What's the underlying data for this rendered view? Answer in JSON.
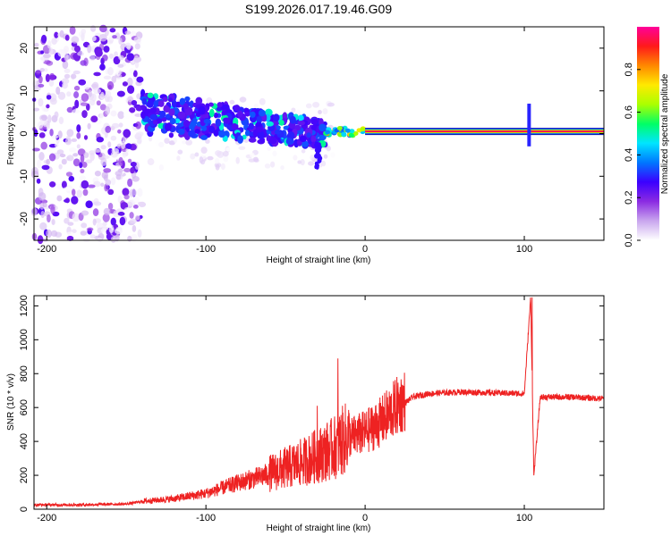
{
  "figure_title": "S199.2026.017.19.46.G09",
  "colors": {
    "snr_line": "#ee2222",
    "colormap": [
      "#ffffff",
      "#c9a6ee",
      "#8b2be2",
      "#3b00ff",
      "#0077ff",
      "#00e5ff",
      "#00ff66",
      "#aaff00",
      "#ffea00",
      "#ff8800",
      "#ff1a1a",
      "#ff0099"
    ]
  },
  "chart_data": [
    {
      "type": "heatmap",
      "title": "S199.2026.017.19.46.G09",
      "xlabel": "Height of straight line (km)",
      "ylabel": "Frequency (Hz)",
      "xlim": [
        -208,
        150
      ],
      "ylim": [
        -25,
        25
      ],
      "xticks": [
        -200,
        -100,
        0,
        100
      ],
      "xtick_labels": [
        "-200",
        "-100",
        "0",
        "100"
      ],
      "yticks": [
        -20,
        -10,
        0,
        10,
        20
      ],
      "ytick_labels": [
        "-20",
        "-10",
        "0",
        "10",
        "20"
      ],
      "colorbar": {
        "label": "Normalized spectral amplitude",
        "range": [
          0,
          1
        ],
        "ticks": [
          0.0,
          0.2,
          0.4,
          0.6,
          0.8
        ],
        "tick_labels": [
          "0.0",
          "0.2",
          "0.4",
          "0.6",
          "0.8"
        ]
      },
      "features": [
        {
          "description": "diffuse noise region",
          "x_range": [
            -208,
            -140
          ],
          "y_range": [
            -25,
            25
          ],
          "amplitude": 0.15
        },
        {
          "description": "converging band",
          "x_range": [
            -140,
            -25
          ],
          "center_hz": [
            5,
            0
          ],
          "amplitude": 0.3
        },
        {
          "description": "steady carrier line",
          "x_range": [
            0,
            150
          ],
          "center_hz": 0.5,
          "amplitude": 0.95
        },
        {
          "description": "spike",
          "x": 103,
          "y_range": [
            -3,
            7
          ],
          "amplitude": 0.3
        }
      ]
    },
    {
      "type": "line",
      "xlabel": "Height of straight line (km)",
      "ylabel": "SNR (10 * v/v)",
      "xlim": [
        -208,
        150
      ],
      "ylim": [
        0,
        1260
      ],
      "xticks": [
        -200,
        -100,
        0,
        100
      ],
      "xtick_labels": [
        "-200",
        "-100",
        "0",
        "100"
      ],
      "yticks": [
        0,
        200,
        400,
        600,
        800,
        1000,
        1200
      ],
      "ytick_labels": [
        "0",
        "200",
        "400",
        "600",
        "800",
        "1000",
        "1200"
      ],
      "series": [
        {
          "name": "SNR",
          "x": [
            -208,
            -180,
            -150,
            -140,
            -120,
            -100,
            -80,
            -60,
            -40,
            -30,
            -20,
            -10,
            0,
            10,
            20,
            30,
            40,
            60,
            80,
            100,
            104,
            106,
            110,
            130,
            150
          ],
          "values": [
            25,
            25,
            30,
            45,
            60,
            90,
            150,
            200,
            260,
            300,
            340,
            410,
            440,
            500,
            590,
            660,
            680,
            690,
            685,
            680,
            1250,
            200,
            660,
            660,
            650
          ]
        }
      ],
      "spikes": [
        {
          "x": -17,
          "value": 890
        },
        {
          "x": -30,
          "value": 610
        },
        {
          "x": 105,
          "value": 1250
        },
        {
          "x": 106,
          "value": 200
        }
      ]
    }
  ]
}
